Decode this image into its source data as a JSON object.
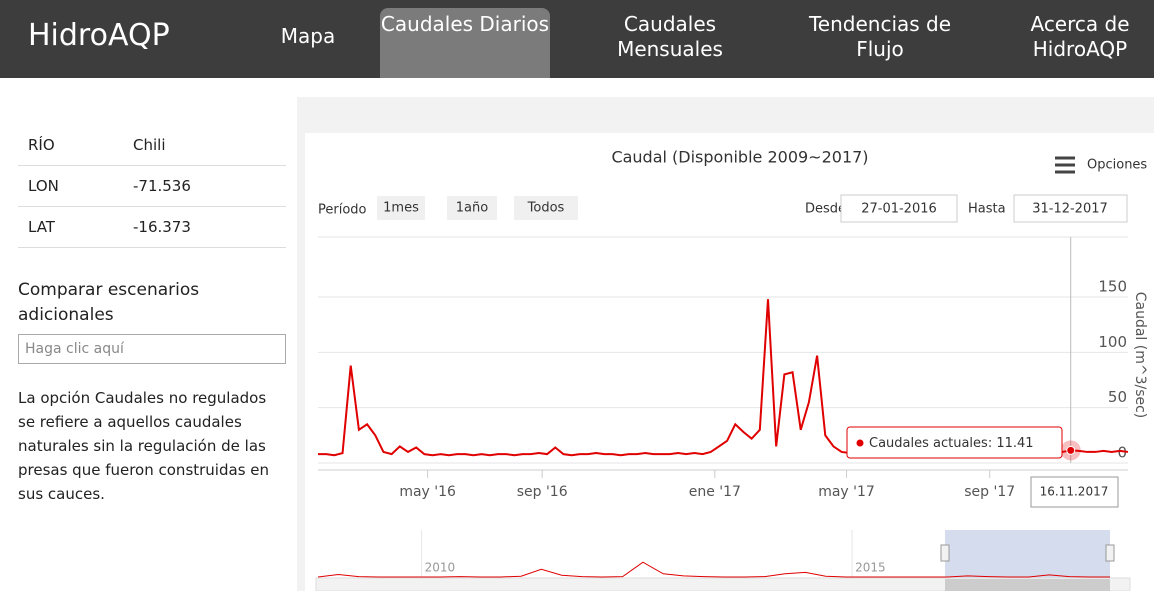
{
  "header": {
    "brand": "HidroAQP",
    "nav": [
      "Mapa",
      "Caudales Diarios",
      "Caudales Mensuales",
      "Tendencias de Flujo",
      "Acerca de HidroAQP"
    ],
    "active": 1
  },
  "sidebar": {
    "rows": [
      [
        "RÍO",
        "Chili"
      ],
      [
        "LON",
        "-71.536"
      ],
      [
        "LAT",
        "-16.373"
      ]
    ],
    "compare_title": "Comparar escenarios adicionales",
    "input_placeholder": "Haga clic aquí",
    "note": "La opción Caudales no regulados se refiere a aquellos caudales naturales sin la regulación de las presas que fueron construidas en sus cauces."
  },
  "chart_data": {
    "type": "line",
    "title": "Caudal (Disponible 2009~2017)",
    "menu": "Opciones",
    "period_label": "Período",
    "range_buttons": [
      "1mes",
      "1año",
      "Todos"
    ],
    "from_label": "Desde",
    "from": "27-01-2016",
    "to_label": "Hasta",
    "to": "31-12-2017",
    "y_label": "Caudal (m^3/sec)",
    "ylim": [
      0,
      150
    ],
    "yticks": [
      0,
      50,
      100,
      150
    ],
    "grid": true,
    "xlim": [
      0,
      99
    ],
    "xticks": [
      {
        "value": 13.4,
        "label": "may '16"
      },
      {
        "value": 27.4,
        "label": "sep '16"
      },
      {
        "value": 48.5,
        "label": "ene '17"
      },
      {
        "value": 64.6,
        "label": "may '17"
      },
      {
        "value": 82.1,
        "label": "sep '17"
      }
    ],
    "series": [
      {
        "name": "Caudales actuales",
        "color": "#e00000",
        "values": [
          8,
          8,
          7,
          9,
          88,
          30,
          35,
          25,
          10,
          8,
          15,
          10,
          14,
          8,
          7,
          8,
          7,
          8,
          8,
          7,
          8,
          7,
          8,
          8,
          7,
          8,
          8,
          9,
          8,
          14,
          8,
          7,
          8,
          8,
          9,
          8,
          8,
          7,
          8,
          8,
          9,
          8,
          8,
          8,
          9,
          8,
          9,
          8,
          10,
          15,
          20,
          35,
          28,
          22,
          30,
          148,
          15,
          80,
          82,
          30,
          55,
          97,
          25,
          15,
          10,
          9,
          8,
          9,
          10,
          9,
          8,
          9,
          10,
          9,
          8,
          9,
          9,
          10,
          9,
          8,
          9,
          10,
          9,
          10,
          9,
          8,
          9,
          10,
          11,
          10,
          9,
          10,
          11.41,
          11,
          10,
          10,
          11,
          10,
          11,
          10
        ]
      }
    ],
    "tooltip_date": "16.11.2017",
    "navigator": {
      "color": "#e00000",
      "ylim": [
        0,
        100
      ],
      "xlim": [
        0,
        39
      ],
      "xticks": [
        {
          "value": 5.1,
          "label": "2010"
        },
        {
          "value": 26.3,
          "label": "2015"
        }
      ],
      "values": [
        3,
        10,
        4,
        3,
        3,
        3,
        3,
        4,
        3,
        3,
        5,
        25,
        8,
        4,
        3,
        4,
        45,
        12,
        6,
        4,
        3,
        3,
        4,
        12,
        16,
        5,
        3,
        3,
        3,
        3,
        3,
        3,
        6,
        4,
        3,
        3,
        9,
        4,
        3,
        3
      ]
    }
  }
}
